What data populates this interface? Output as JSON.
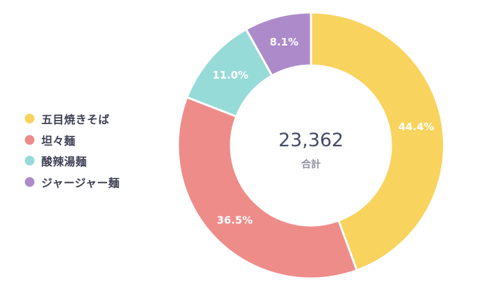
{
  "chart_data": {
    "type": "pie",
    "variant": "donut",
    "title": "",
    "total": "23,362",
    "total_caption": "合計",
    "legend_position": "left",
    "categories": [
      "五目焼きそば",
      "坦々麺",
      "酸辣湯麺",
      "ジャージャー麺"
    ],
    "values": [
      44.4,
      36.5,
      11.0,
      8.1
    ],
    "value_labels": [
      "44.4%",
      "36.5%",
      "11.0%",
      "8.1%"
    ],
    "colors": [
      "#f8d35e",
      "#ee8c8a",
      "#97dbd8",
      "#ad8bca"
    ]
  }
}
